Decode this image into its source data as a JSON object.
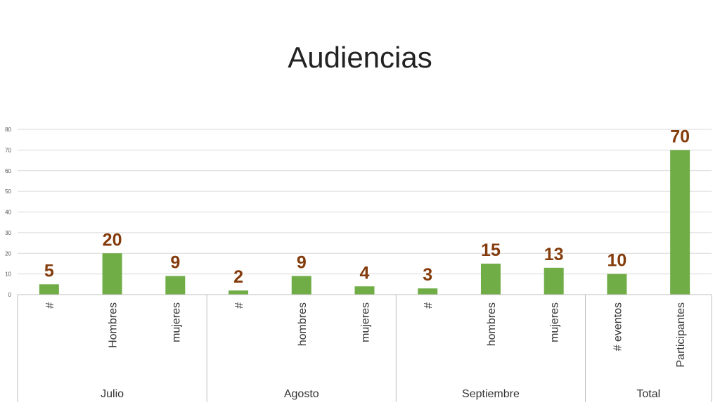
{
  "title": "Audiencias",
  "colors": {
    "bar": "#70ad47",
    "label": "#843c0c",
    "grid": "#d9d9d9",
    "axis": "#bfbfbf"
  },
  "chart_data": {
    "type": "bar",
    "title": "Audiencias",
    "ylim": [
      0,
      80
    ],
    "yticks": [
      0,
      10,
      20,
      30,
      40,
      50,
      60,
      70,
      80
    ],
    "grid": true,
    "legend": "none",
    "categories": [
      "#",
      "Hombres",
      "mujeres",
      "#",
      "hombres",
      "mujeres",
      "#",
      "hombres",
      "mujeres",
      "# eventos",
      "Participantes"
    ],
    "values": [
      5,
      20,
      9,
      2,
      9,
      4,
      3,
      15,
      13,
      10,
      70
    ],
    "groups": [
      {
        "label": "Julio",
        "count": 3
      },
      {
        "label": "Agosto",
        "count": 3
      },
      {
        "label": "Septiembre",
        "count": 3
      },
      {
        "label": "Total",
        "count": 2
      }
    ]
  }
}
